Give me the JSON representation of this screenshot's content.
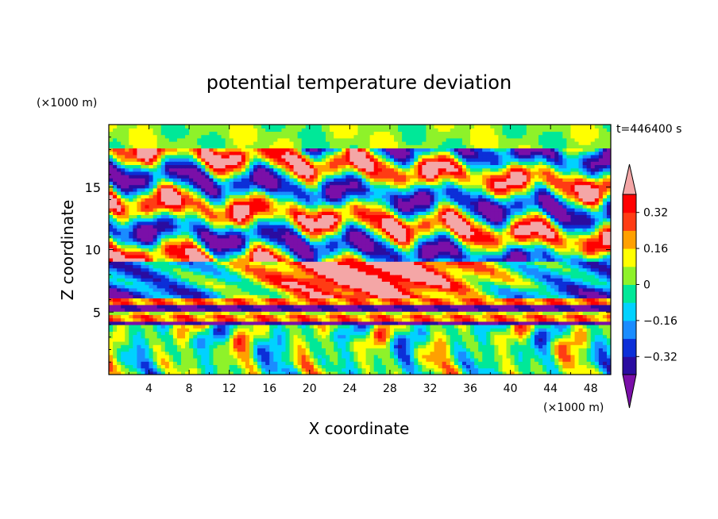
{
  "chart_data": {
    "type": "heatmap",
    "title": "potential temperature deviation",
    "xlabel": "X coordinate",
    "ylabel": "Z coordinate",
    "x_unit": "(×1000 m)",
    "y_unit": "(×1000 m)",
    "time_label": "t=446400 s",
    "xlim": [
      0,
      50
    ],
    "ylim": [
      0,
      20
    ],
    "x_ticks": [
      4,
      8,
      12,
      16,
      20,
      24,
      28,
      32,
      36,
      40,
      44,
      48
    ],
    "y_ticks": [
      5,
      10,
      15
    ],
    "colorbar": {
      "levels": [
        -0.4,
        -0.32,
        -0.24,
        -0.16,
        -0.08,
        0,
        0.08,
        0.16,
        0.24,
        0.32,
        0.4
      ],
      "labeled_levels": [
        "0.32",
        "0.16",
        "0",
        "−0.16",
        "−0.32"
      ],
      "labeled_values": [
        0.32,
        0.16,
        0,
        -0.16,
        -0.32
      ],
      "colors": [
        "#7a0fa8",
        "#2a0ca0",
        "#0c2fd8",
        "#1a8cff",
        "#00d2ff",
        "#00e898",
        "#8ef22a",
        "#ffff00",
        "#ffa000",
        "#ff3c14",
        "#ff0000",
        "#f4a6a6"
      ],
      "under_color": "#7a0fa8",
      "over_color": "#f4a6a6"
    },
    "field_bands": [
      {
        "z_range": [
          18,
          20
        ],
        "dominant_value": 0.05
      },
      {
        "z_range": [
          13,
          18
        ],
        "dominant_value": "alternating ±0.4"
      },
      {
        "z_range": [
          6,
          9
        ],
        "dominant_value": 0.4
      },
      {
        "z_range": [
          4,
          6
        ],
        "dominant_value": "alternating -0.4 / 0.2"
      },
      {
        "z_range": [
          0,
          4
        ],
        "dominant_value": "wave pattern ±0.3"
      }
    ]
  }
}
